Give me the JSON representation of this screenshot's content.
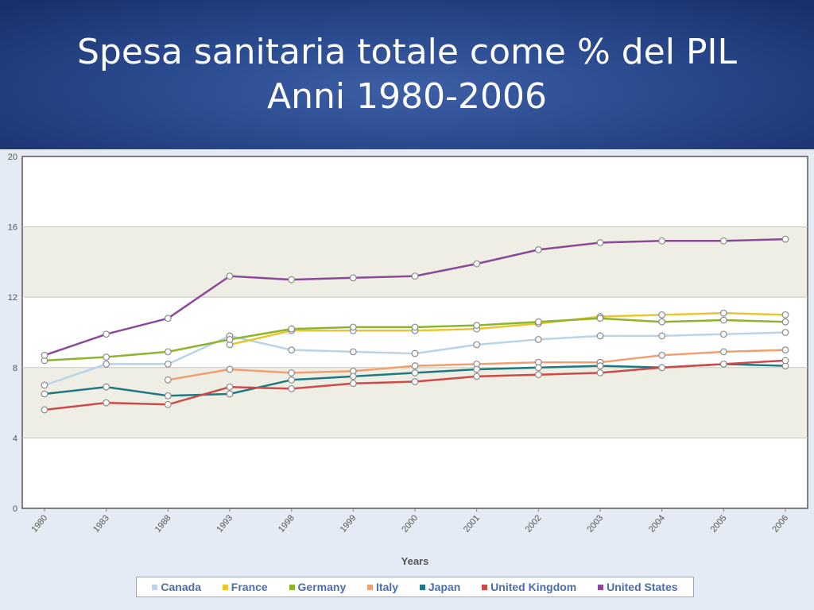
{
  "slide": {
    "title_line1": "Spesa sanitaria totale come % del PIL",
    "title_line2": "Anni 1980-2006"
  },
  "chart_data": {
    "type": "line",
    "title": "Spesa sanitaria totale come % del PIL — Anni 1980-2006",
    "xlabel": "Years",
    "ylabel": "",
    "ylim": [
      0,
      20
    ],
    "yticks": [
      0,
      4,
      8,
      12,
      16,
      20
    ],
    "grid": true,
    "legend_position": "bottom",
    "categories": [
      "1980",
      "1983",
      "1988",
      "1993",
      "1998",
      "1999",
      "2000",
      "2001",
      "2002",
      "2003",
      "2004",
      "2005",
      "2006"
    ],
    "series": [
      {
        "name": "Canada",
        "color": "#b9d3ea",
        "values": [
          7.0,
          8.2,
          8.2,
          9.8,
          9.0,
          8.9,
          8.8,
          9.3,
          9.6,
          9.8,
          9.8,
          9.9,
          10.0
        ]
      },
      {
        "name": "France",
        "color": "#e8c630",
        "values": [
          null,
          null,
          null,
          9.3,
          10.1,
          10.1,
          10.1,
          10.2,
          10.5,
          10.9,
          11.0,
          11.1,
          11.0
        ]
      },
      {
        "name": "Germany",
        "color": "#8db42a",
        "values": [
          8.4,
          8.6,
          8.9,
          9.6,
          10.2,
          10.3,
          10.3,
          10.4,
          10.6,
          10.8,
          10.6,
          10.7,
          10.6
        ]
      },
      {
        "name": "Italy",
        "color": "#f0a070",
        "values": [
          null,
          null,
          7.3,
          7.9,
          7.7,
          7.8,
          8.1,
          8.2,
          8.3,
          8.3,
          8.7,
          8.9,
          9.0
        ]
      },
      {
        "name": "Japan",
        "color": "#1e7a80",
        "values": [
          6.5,
          6.9,
          6.4,
          6.5,
          7.3,
          7.5,
          7.7,
          7.9,
          8.0,
          8.1,
          8.0,
          8.2,
          8.1
        ]
      },
      {
        "name": "United Kingdom",
        "color": "#cc4a4a",
        "values": [
          5.6,
          6.0,
          5.9,
          6.9,
          6.8,
          7.1,
          7.2,
          7.5,
          7.6,
          7.7,
          8.0,
          8.2,
          8.4
        ]
      },
      {
        "name": "United States",
        "color": "#8a4a98",
        "values": [
          8.7,
          9.9,
          10.8,
          13.2,
          13.0,
          13.1,
          13.2,
          13.9,
          14.7,
          15.1,
          15.2,
          15.2,
          15.3
        ]
      }
    ]
  }
}
